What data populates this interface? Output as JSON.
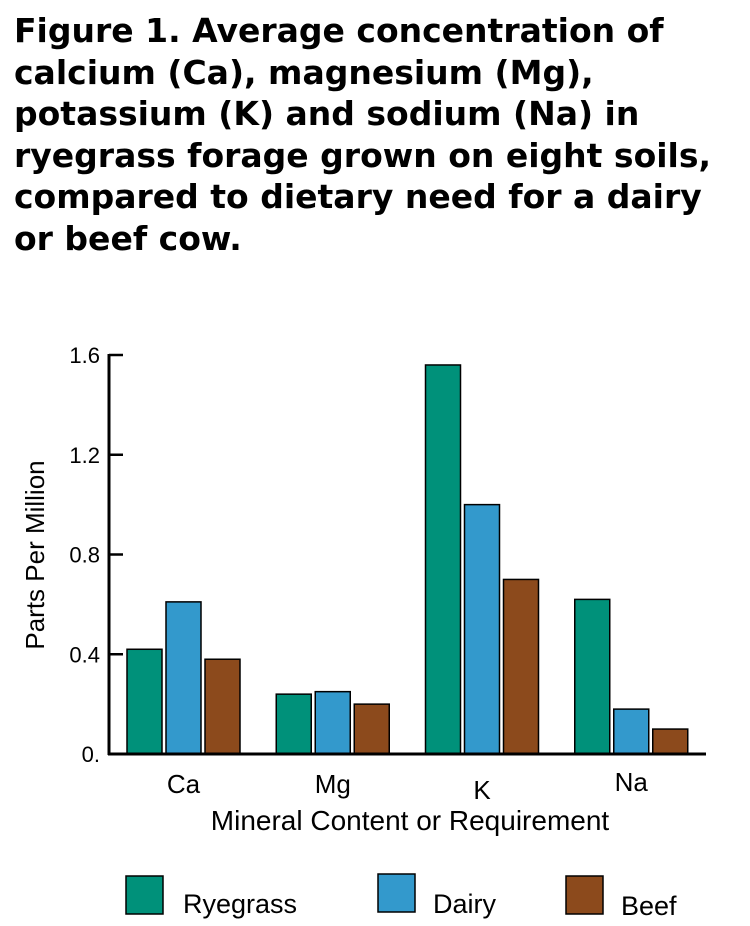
{
  "title": "Figure 1. Average concentration of\ncalcium (Ca), magnesium (Mg),\npotassium (K) and sodium (Na) in\nryegrass forage grown on eight soils,\ncompared to dietary need for a dairy\nor beef  cow.",
  "chart_data": {
    "type": "bar",
    "title": "Figure 1. Average concentration of calcium (Ca), magnesium (Mg), potassium (K) and sodium (Na) in ryegrass forage grown on eight soils, compared to dietary need for a dairy or beef  cow.",
    "xlabel": "Mineral Content or Requirement",
    "ylabel": "Parts Per Million",
    "categories": [
      "Ca",
      "Mg",
      "K",
      "Na"
    ],
    "ylim": [
      0,
      1.6
    ],
    "yticks": [
      0,
      0.4,
      0.8,
      1.2,
      1.6
    ],
    "ytick_labels": [
      "0.",
      "0.4",
      "0.8",
      "1.2",
      "1.6"
    ],
    "grid": false,
    "legend_position": "bottom",
    "series": [
      {
        "name": "Ryegrass",
        "color": "#00917a",
        "values": [
          0.42,
          0.24,
          1.56,
          0.62
        ]
      },
      {
        "name": "Dairy",
        "color": "#3399cc",
        "values": [
          0.61,
          0.25,
          1.0,
          0.18
        ]
      },
      {
        "name": "Beef",
        "color": "#8c4a1c",
        "values": [
          0.38,
          0.2,
          0.7,
          0.1
        ]
      }
    ]
  }
}
